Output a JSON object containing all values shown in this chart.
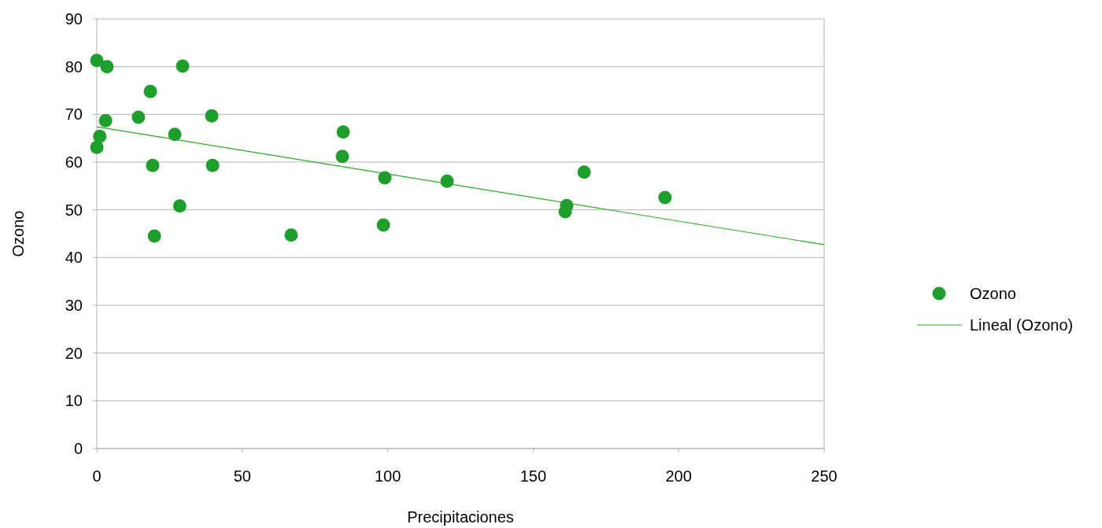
{
  "chart_data": {
    "type": "scatter",
    "xlabel": "Precipitaciones",
    "ylabel": "Ozono",
    "xlim": [
      0,
      250
    ],
    "xticks": [
      0,
      50,
      100,
      150,
      200,
      250
    ],
    "ylim": [
      0,
      90
    ],
    "yticks": [
      0,
      10,
      20,
      30,
      40,
      50,
      60,
      70,
      80,
      90
    ],
    "grid": "y",
    "legend": "right",
    "marker": "circle",
    "series": [
      {
        "name": "Ozono",
        "color": "#1e9e2a",
        "x": [
          0,
          3.5,
          29.5,
          18.4,
          39.5,
          14.3,
          3,
          84.7,
          26.8,
          1,
          0,
          84.4,
          19.2,
          39.8,
          167.5,
          99,
          120.4,
          195.3,
          161.5,
          161,
          28.5,
          98.5,
          66.8,
          19.8
        ],
        "values": [
          81.3,
          80,
          80.1,
          74.8,
          69.7,
          69.4,
          68.7,
          66.3,
          65.8,
          65.4,
          63.1,
          61.2,
          59.3,
          59.3,
          57.9,
          56.7,
          56,
          52.6,
          50.9,
          49.6,
          50.8,
          46.8,
          44.7,
          44.5
        ]
      },
      {
        "name": "Lineal (Ozono)",
        "type": "line",
        "marker": "none",
        "color": "#22b022",
        "x": [
          0,
          250
        ],
        "values": [
          67.4,
          42.7
        ]
      }
    ]
  }
}
